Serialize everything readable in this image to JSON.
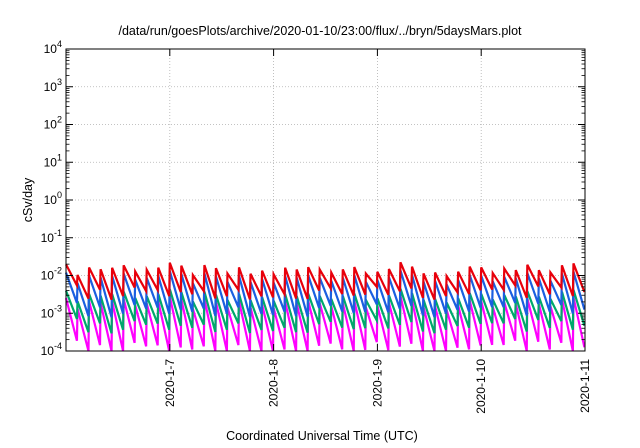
{
  "chart_data": {
    "type": "line",
    "title": "/data/run/goesPlots/archive/2020-01-10/23:00/flux/../bryn/5daysMars.plot",
    "xlabel": "Coordinated Universal Time (UTC)",
    "ylabel": "cSv/day",
    "yscale": "log",
    "ylim": [
      0.0001,
      10000
    ],
    "y_ticks": [
      {
        "base": "10",
        "exp": "-4"
      },
      {
        "base": "10",
        "exp": "-3"
      },
      {
        "base": "10",
        "exp": "-2"
      },
      {
        "base": "10",
        "exp": "-1"
      },
      {
        "base": "10",
        "exp": "0"
      },
      {
        "base": "10",
        "exp": "1"
      },
      {
        "base": "10",
        "exp": "2"
      },
      {
        "base": "10",
        "exp": "3"
      },
      {
        "base": "10",
        "exp": "4"
      }
    ],
    "xlim": [
      "2020-01-06 00:00",
      "2020-01-11 00:00"
    ],
    "x_ticks": [
      "2020-1-7",
      "2020-1-8",
      "2020-1-9",
      "2020-1-10",
      "2020-1-11"
    ],
    "grid": true,
    "colors": [
      "#e8000b",
      "#1a5fe0",
      "#00a86b",
      "#ff00ff"
    ],
    "series": [
      {
        "color": "#e8000b",
        "peak": 0.014,
        "trough": 0.0035
      },
      {
        "color": "#1a5fe0",
        "peak": 0.0085,
        "trough": 0.0012
      },
      {
        "color": "#00a86b",
        "peak": 0.0028,
        "trough": 0.00045
      },
      {
        "color": "#ff00ff",
        "peak": 0.0018,
        "trough": 0.00012
      }
    ],
    "cycles_per_day": 9
  }
}
